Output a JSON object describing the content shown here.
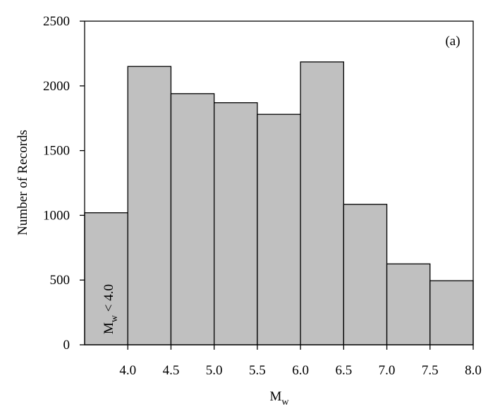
{
  "chart_data": {
    "type": "histogram",
    "bins": [
      3.5,
      4.0,
      4.5,
      5.0,
      5.5,
      6.0,
      6.5,
      7.0,
      7.5,
      8.0
    ],
    "values": [
      1020,
      2150,
      1940,
      1870,
      1780,
      2185,
      1085,
      625,
      495
    ],
    "color": "#c0c0c0",
    "xlim": [
      3.5,
      8.0
    ],
    "xticks": [
      {
        "value": 4,
        "label": "4.0"
      },
      {
        "value": 4.5,
        "label": "4.5"
      },
      {
        "value": 5,
        "label": "5.0"
      },
      {
        "value": 5.5,
        "label": "5.5"
      },
      {
        "value": 6,
        "label": "6.0"
      },
      {
        "value": 6.5,
        "label": "6.5"
      },
      {
        "value": 7,
        "label": "7.0"
      },
      {
        "value": 7.5,
        "label": "7.5"
      },
      {
        "value": 8,
        "label": "8.0"
      }
    ],
    "ylim": [
      0,
      2500
    ],
    "yticks": [
      0,
      500,
      1000,
      1500,
      2000,
      2500
    ],
    "y_label": "Number of Records",
    "x_label": {
      "main": "M",
      "sub": "w"
    },
    "panel_label": "(a)",
    "annotation": {
      "main": "M",
      "sub": "w",
      "rest": " < 4.0"
    }
  }
}
